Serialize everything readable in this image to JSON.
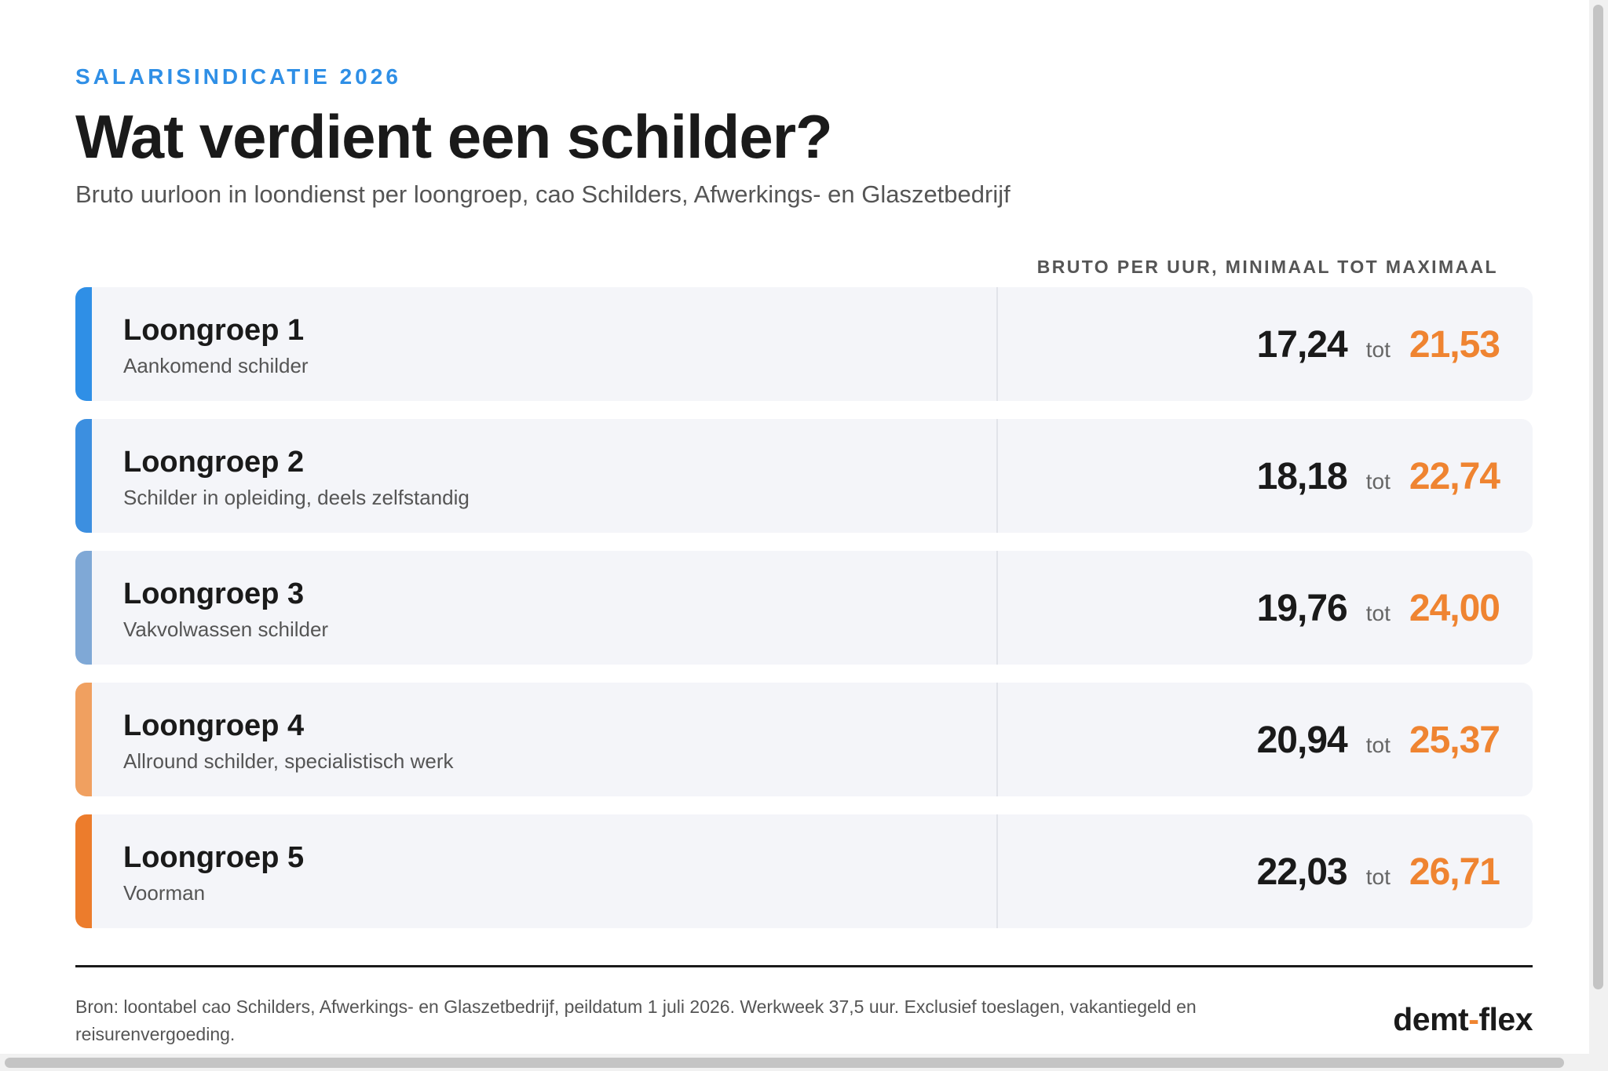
{
  "header": {
    "eyebrow": "SALARISINDICATIE 2026",
    "title": "Wat verdient een schilder?",
    "subtitle": "Bruto uurloon in loondienst per loongroep, cao Schilders, Afwerkings- en Glaszetbedrijf"
  },
  "table": {
    "column_header": "BRUTO PER UUR, MINIMAAL TOT MAXIMAAL",
    "separator": "tot",
    "rows": [
      {
        "name": "Loongroep 1",
        "description": "Aankomend schilder",
        "min": "17,24",
        "max": "21,53",
        "accent_color": "#2f8fe6"
      },
      {
        "name": "Loongroep 2",
        "description": "Schilder in opleiding, deels zelfstandig",
        "min": "18,18",
        "max": "22,74",
        "accent_color": "#3c8fe0"
      },
      {
        "name": "Loongroep 3",
        "description": "Vakvolwassen schilder",
        "min": "19,76",
        "max": "24,00",
        "accent_color": "#7fa8d6"
      },
      {
        "name": "Loongroep 4",
        "description": "Allround schilder, specialistisch werk",
        "min": "20,94",
        "max": "25,37",
        "accent_color": "#f0a060"
      },
      {
        "name": "Loongroep 5",
        "description": "Voorman",
        "min": "22,03",
        "max": "26,71",
        "accent_color": "#ec7c2c"
      }
    ]
  },
  "footer": {
    "source": "Bron: loontabel cao Schilders, Afwerkings- en Glaszetbedrijf, peildatum 1 juli 2026. Werkweek 37,5 uur. Exclusief toeslagen, vakantiegeld en reisurenvergoeding.",
    "brand_left": "demt",
    "brand_dash": "-",
    "brand_right": "flex"
  },
  "colors": {
    "accent_blue": "#2f8fe6",
    "accent_orange": "#ef8431",
    "row_background": "#f4f5f9"
  }
}
